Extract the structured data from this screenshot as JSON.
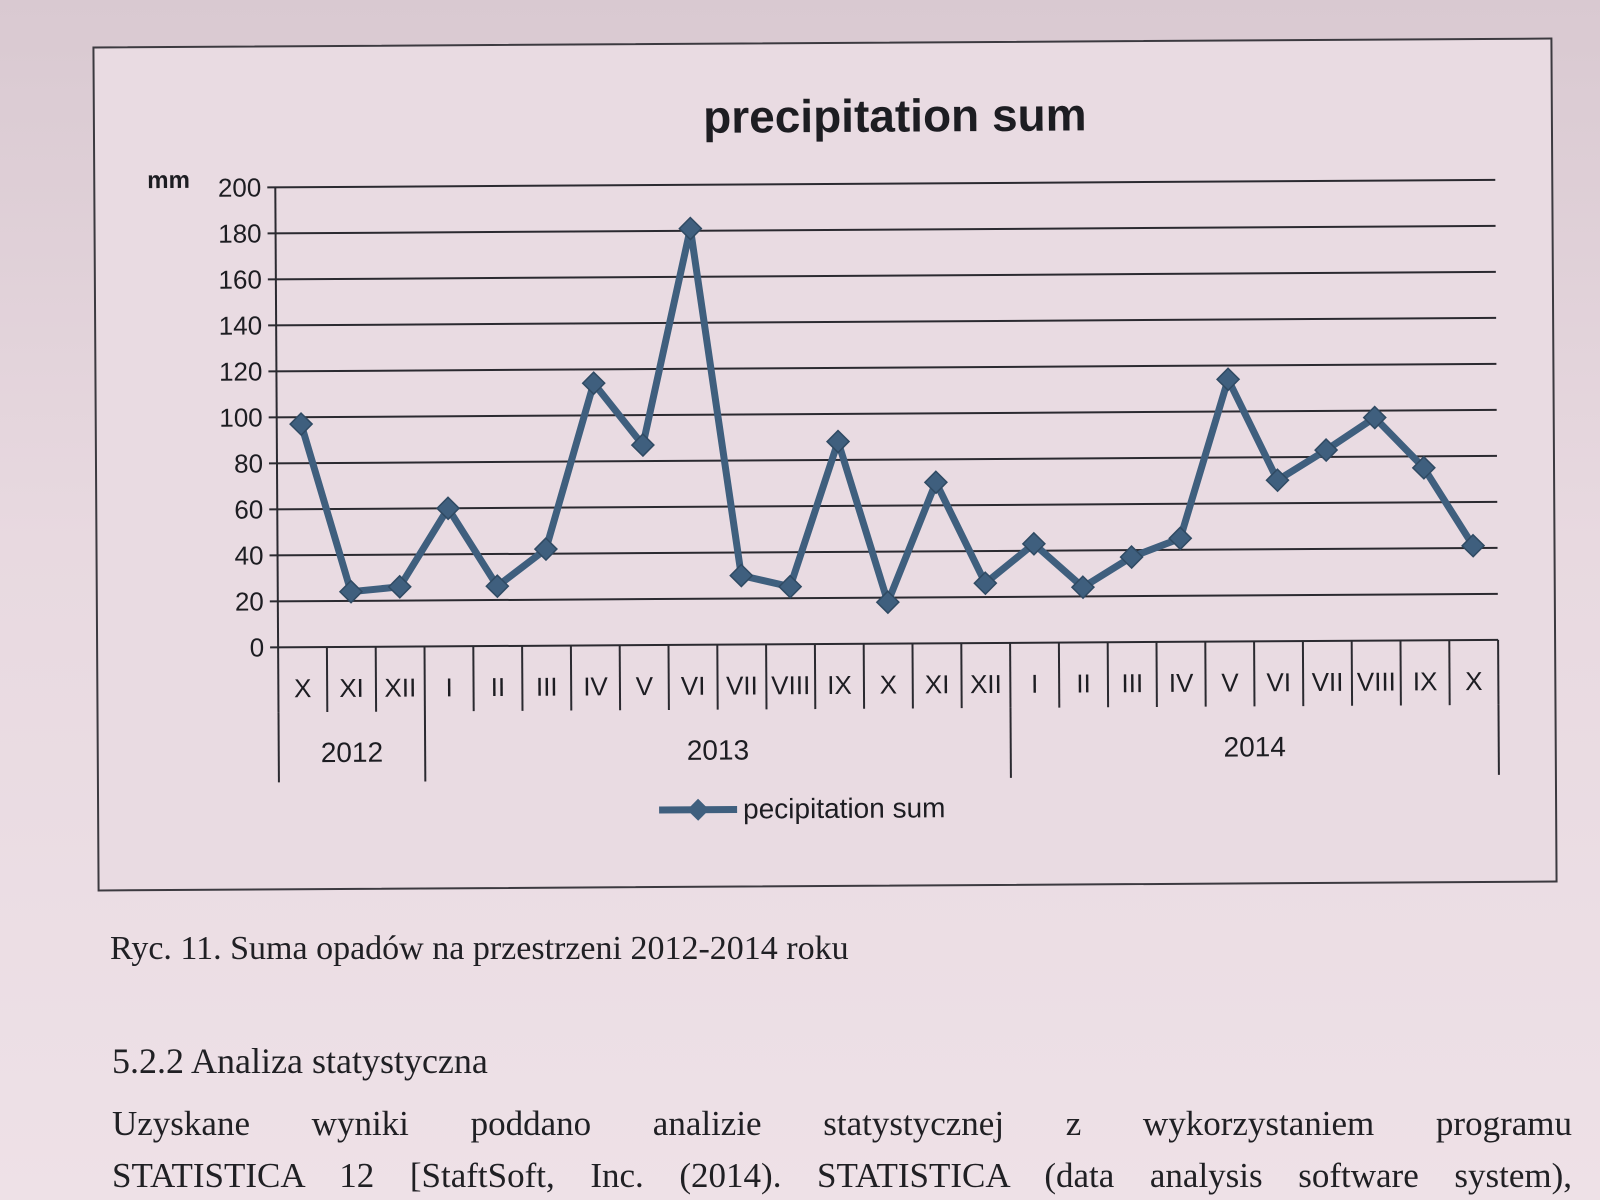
{
  "chart_data": {
    "type": "line",
    "title": "precipitation sum",
    "ylabel": "mm",
    "ylim": [
      0,
      200
    ],
    "yticks": [
      0,
      20,
      40,
      60,
      80,
      100,
      120,
      140,
      160,
      180,
      200
    ],
    "categories": [
      "X",
      "XI",
      "XII",
      "I",
      "II",
      "III",
      "IV",
      "V",
      "VI",
      "VII",
      "VIII",
      "IX",
      "X",
      "XI",
      "XII",
      "I",
      "II",
      "III",
      "IV",
      "V",
      "VI",
      "VII",
      "VIII",
      "IX",
      "X"
    ],
    "year_groups": [
      {
        "label": "2012",
        "count": 3
      },
      {
        "label": "2013",
        "count": 12
      },
      {
        "label": "2014",
        "count": 10
      }
    ],
    "series": [
      {
        "name": "pecipitation sum",
        "color": "#3f5f7e",
        "values": [
          97,
          24,
          26,
          60,
          26,
          42,
          114,
          87,
          181,
          30,
          25,
          88,
          18,
          70,
          26,
          43,
          24,
          37,
          45,
          114,
          70,
          83,
          97,
          75,
          41
        ]
      }
    ],
    "grid": true,
    "legend": "bottom"
  },
  "caption": "Ryc. 11. Suma opadów na przestrzeni 2012-2014 roku",
  "section_heading": "5.2.2 Analiza statystyczna",
  "body_lines": [
    "Uzyskane wyniki poddano analizie statystycznej z wykorzystaniem programu",
    "STATISTICA 12 [StaftSoft, Inc. (2014). STATISTICA (data analysis software system),"
  ]
}
